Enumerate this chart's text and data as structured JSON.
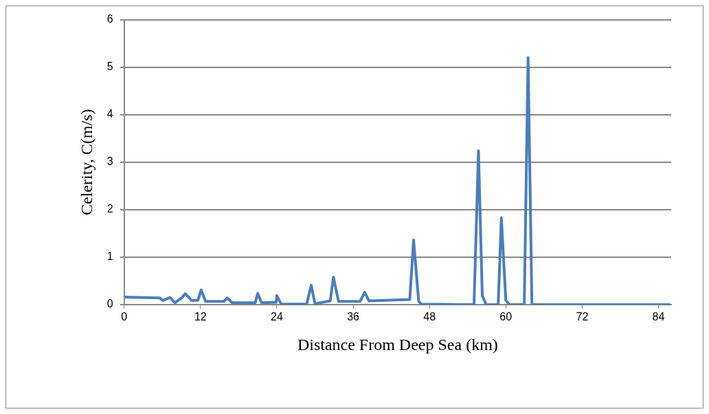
{
  "chart_data": {
    "type": "line",
    "xlabel": "Distance From Deep Sea (km)",
    "ylabel": "Celerity, C(m/s)",
    "x": [
      0,
      5.6,
      6.1,
      7.2,
      8.0,
      9.1,
      9.6,
      10.6,
      11.6,
      12.1,
      12.8,
      15.7,
      16.2,
      17.0,
      20.6,
      21.0,
      21.6,
      23.9,
      24.0,
      24.7,
      28.7,
      29.4,
      30.0,
      32.4,
      32.9,
      33.7,
      37.1,
      37.8,
      38.5,
      44.9,
      45.5,
      46.3,
      46.7,
      55.0,
      55.7,
      56.3,
      56.9,
      58.8,
      59.3,
      60.0,
      60.6,
      62.9,
      63.5,
      64.1,
      85.7
    ],
    "series": [
      {
        "color": "#4a7ebb",
        "values": [
          0.16,
          0.14,
          0.09,
          0.15,
          0.04,
          0.15,
          0.23,
          0.09,
          0.09,
          0.31,
          0.07,
          0.07,
          0.14,
          0.04,
          0.04,
          0.24,
          0.04,
          0.05,
          0.19,
          0.01,
          0.01,
          0.41,
          0.02,
          0.08,
          0.58,
          0.07,
          0.07,
          0.26,
          0.08,
          0.11,
          1.36,
          0.07,
          0.01,
          0,
          3.24,
          0.19,
          0,
          0,
          1.83,
          0.09,
          0,
          0,
          5.2,
          0,
          0
        ]
      }
    ],
    "xlim": [
      0,
      86
    ],
    "xticks": [
      0,
      12,
      24,
      36,
      48,
      60,
      72,
      84
    ],
    "ylim": [
      0,
      6
    ],
    "yticks": [
      0,
      1,
      2,
      3,
      4,
      5,
      6
    ],
    "grid": "y",
    "legend": false,
    "marker": "none",
    "line_style": "solid"
  }
}
